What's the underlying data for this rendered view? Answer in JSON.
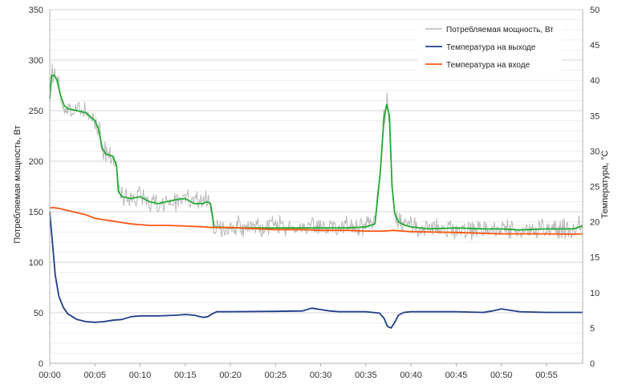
{
  "chart_data": {
    "type": "line",
    "ylabel": "Потребляемая мощность, Вт",
    "y2label": "Температура, °С",
    "ylim": [
      0,
      350
    ],
    "y2lim": [
      0,
      50
    ],
    "xlim": [
      0,
      59
    ],
    "yticks": [
      "0",
      "50",
      "100",
      "150",
      "200",
      "250",
      "300",
      "350"
    ],
    "y2ticks": [
      "0",
      "5",
      "10",
      "15",
      "20",
      "25",
      "30",
      "35",
      "40",
      "45",
      "50"
    ],
    "xticks": [
      "00:00",
      "00:05",
      "00:10",
      "00:15",
      "00:20",
      "00:25",
      "00:30",
      "00:35",
      "00:40",
      "00:45",
      "00:50",
      "00:55"
    ],
    "grid": true,
    "legend_position": "top-right",
    "series": [
      {
        "name": "Потребляемая мощность, Вт",
        "axis": "left",
        "color": "#b8b8b8",
        "style": "noisy",
        "x": [
          0,
          0.2,
          0.5,
          0.8,
          1.2,
          1.6,
          2,
          3,
          4,
          5,
          5.4,
          5.8,
          6.2,
          7,
          7.4,
          7.6,
          8,
          9,
          10,
          11,
          12,
          13,
          14,
          15,
          16,
          17,
          17.4,
          17.8,
          18.2,
          20,
          22,
          25,
          28,
          30,
          33,
          35,
          36,
          36.6,
          37,
          37.3,
          37.6,
          37.9,
          38.2,
          38.6,
          39.2,
          40,
          42,
          45,
          48,
          50,
          52,
          55,
          58,
          59
        ],
        "y": [
          255,
          285,
          290,
          282,
          265,
          255,
          252,
          250,
          248,
          240,
          232,
          215,
          207,
          205,
          195,
          175,
          165,
          163,
          165,
          160,
          158,
          160,
          161,
          163,
          159,
          161,
          160,
          158,
          135,
          135,
          135,
          135,
          135,
          135,
          135,
          135,
          140,
          190,
          242,
          260,
          240,
          175,
          148,
          140,
          136,
          135,
          133,
          133,
          133,
          133,
          132,
          133,
          134,
          135
        ]
      },
      {
        "name": "",
        "axis": "left",
        "color": "#22aa33",
        "style": "smooth",
        "x": [
          0,
          0.2,
          0.5,
          0.8,
          1.2,
          1.6,
          2,
          3,
          4,
          5,
          5.4,
          5.8,
          6.2,
          7,
          7.4,
          7.6,
          8,
          9,
          10,
          11,
          12,
          13,
          14,
          15,
          16,
          17,
          17.4,
          17.8,
          18.2,
          20,
          22,
          25,
          28,
          30,
          33,
          35,
          36,
          36.6,
          37,
          37.3,
          37.6,
          37.9,
          38.2,
          38.6,
          39.2,
          40,
          42,
          45,
          48,
          50,
          52,
          55,
          58,
          59
        ],
        "y": [
          262,
          285,
          285,
          280,
          265,
          255,
          252,
          250,
          248,
          240,
          232,
          213,
          207,
          205,
          195,
          170,
          165,
          163,
          165,
          160,
          158,
          160,
          162,
          163,
          158,
          158,
          160,
          158,
          135,
          134,
          134,
          134,
          134,
          134,
          134,
          135,
          138,
          190,
          242,
          256,
          245,
          175,
          148,
          140,
          137,
          135,
          133,
          134,
          133,
          133,
          132,
          133,
          133,
          136
        ]
      },
      {
        "name": "Температура на выходе",
        "axis": "right",
        "color": "#1f3d8c",
        "style": "smooth",
        "x": [
          0,
          0.3,
          0.6,
          1,
          1.5,
          2,
          3,
          4,
          5,
          6,
          7,
          8,
          9,
          10,
          12,
          14,
          15,
          16,
          17,
          17.5,
          18,
          18.5,
          19,
          20,
          25,
          28,
          29,
          30,
          31,
          32,
          35,
          36.5,
          37,
          37.4,
          37.8,
          38.2,
          38.6,
          39.2,
          40,
          45,
          48,
          49,
          50,
          51,
          52,
          55,
          59
        ],
        "y": [
          21.4,
          17,
          12.5,
          9.5,
          7.9,
          7,
          6.2,
          5.9,
          5.8,
          5.9,
          6.1,
          6.2,
          6.6,
          6.7,
          6.7,
          6.8,
          6.9,
          6.8,
          6.5,
          6.6,
          7,
          7.3,
          7.3,
          7.3,
          7.35,
          7.4,
          7.8,
          7.6,
          7.4,
          7.3,
          7.3,
          7.1,
          6.4,
          5.2,
          5,
          5.8,
          6.8,
          7.2,
          7.3,
          7.3,
          7.2,
          7.4,
          7.7,
          7.5,
          7.3,
          7.2,
          7.2
        ]
      },
      {
        "name": "Температура на входе",
        "axis": "right",
        "color": "#ff5511",
        "style": "smooth",
        "x": [
          0,
          0.5,
          1,
          2,
          3,
          4,
          5,
          6,
          7,
          8,
          9,
          10,
          11,
          13,
          15,
          17,
          18,
          20,
          25,
          28,
          30,
          33,
          35,
          37,
          38,
          40,
          45,
          50,
          55,
          58,
          59
        ],
        "y": [
          22,
          22,
          21.9,
          21.6,
          21.3,
          21,
          20.5,
          20.3,
          20.1,
          19.9,
          19.7,
          19.6,
          19.5,
          19.5,
          19.4,
          19.3,
          19.2,
          19.2,
          18.9,
          18.9,
          18.8,
          18.8,
          18.7,
          18.7,
          18.8,
          18.6,
          18.5,
          18.3,
          18.3,
          18.25,
          18.3
        ]
      }
    ]
  }
}
